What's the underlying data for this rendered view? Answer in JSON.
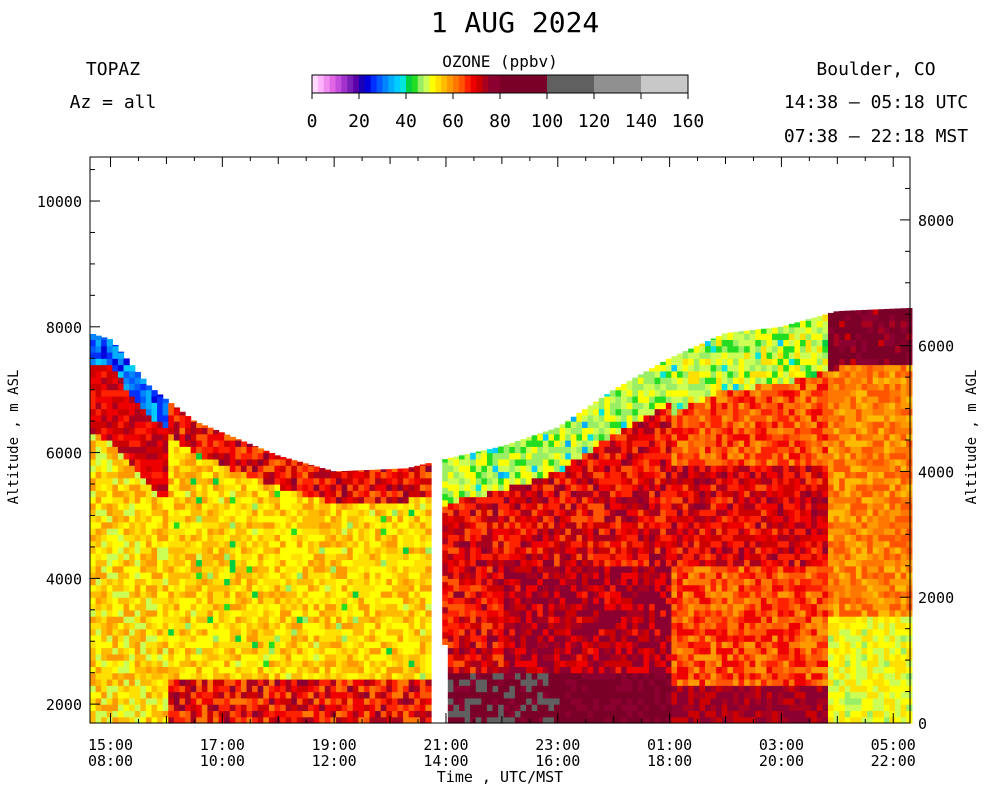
{
  "header": {
    "title": "1 AUG 2024",
    "instrument": "TOPAZ",
    "azimuth": "Az = all",
    "location": "Boulder, CO",
    "utc_range": "14:38 – 05:18 UTC",
    "mst_range": "07:38 – 22:18 MST"
  },
  "colorbar": {
    "title": "OZONE (ppbv)",
    "tick_labels": [
      "0",
      "20",
      "40",
      "60",
      "80",
      "100",
      "120",
      "140",
      "160"
    ],
    "bins": [
      {
        "from": 0,
        "to": 2.5,
        "color": "#ffd9ff"
      },
      {
        "from": 2.5,
        "to": 5,
        "color": "#ffb3ff"
      },
      {
        "from": 5,
        "to": 7.5,
        "color": "#f08cf0"
      },
      {
        "from": 7.5,
        "to": 10,
        "color": "#e066e6"
      },
      {
        "from": 10,
        "to": 12.5,
        "color": "#c34ddc"
      },
      {
        "from": 12.5,
        "to": 15,
        "color": "#a333cc"
      },
      {
        "from": 15,
        "to": 17.5,
        "color": "#7a1fb8"
      },
      {
        "from": 17.5,
        "to": 20,
        "color": "#5a00a8"
      },
      {
        "from": 20,
        "to": 22.5,
        "color": "#1a00b8"
      },
      {
        "from": 22.5,
        "to": 25,
        "color": "#0000dd"
      },
      {
        "from": 25,
        "to": 27.5,
        "color": "#0030ff"
      },
      {
        "from": 27.5,
        "to": 30,
        "color": "#005aff"
      },
      {
        "from": 30,
        "to": 32.5,
        "color": "#0085ff"
      },
      {
        "from": 32.5,
        "to": 35,
        "color": "#00adff"
      },
      {
        "from": 35,
        "to": 37.5,
        "color": "#00ccff"
      },
      {
        "from": 37.5,
        "to": 40,
        "color": "#00e6dd"
      },
      {
        "from": 40,
        "to": 42.5,
        "color": "#00d040"
      },
      {
        "from": 42.5,
        "to": 45,
        "color": "#22dd22"
      },
      {
        "from": 45,
        "to": 47.5,
        "color": "#99ee66"
      },
      {
        "from": 47.5,
        "to": 50,
        "color": "#ccff55"
      },
      {
        "from": 50,
        "to": 52.5,
        "color": "#ffff00"
      },
      {
        "from": 52.5,
        "to": 55,
        "color": "#ffe000"
      },
      {
        "from": 55,
        "to": 57.5,
        "color": "#ffbb00"
      },
      {
        "from": 57.5,
        "to": 60,
        "color": "#ff9900"
      },
      {
        "from": 60,
        "to": 62.5,
        "color": "#ff7700"
      },
      {
        "from": 62.5,
        "to": 65,
        "color": "#ff5500"
      },
      {
        "from": 65,
        "to": 67.5,
        "color": "#ff2200"
      },
      {
        "from": 67.5,
        "to": 70,
        "color": "#ee0000"
      },
      {
        "from": 70,
        "to": 72.5,
        "color": "#cc0000"
      },
      {
        "from": 72.5,
        "to": 75,
        "color": "#aa0020"
      },
      {
        "from": 75,
        "to": 80,
        "color": "#8b0030"
      },
      {
        "from": 80,
        "to": 100,
        "color": "#7a0028"
      },
      {
        "from": 100,
        "to": 120,
        "color": "#606060"
      },
      {
        "from": 120,
        "to": 140,
        "color": "#909090"
      },
      {
        "from": 140,
        "to": 160,
        "color": "#c8c8c8"
      }
    ]
  },
  "chart_data": {
    "type": "heatmap",
    "variable": "OZONE (ppbv)",
    "xlabel": "Time , UTC/MST",
    "ylabel_left": "Altitude , m ASL",
    "ylabel_right": "Altitude , m AGL",
    "ylim_asl": [
      1700,
      10700
    ],
    "ylim_agl": [
      0,
      9000
    ],
    "xlim_utc_hours": [
      14.633,
      29.3
    ],
    "x_ticks": [
      {
        "utc": "15:00",
        "mst": "08:00",
        "hour": 15
      },
      {
        "utc": "17:00",
        "mst": "10:00",
        "hour": 17
      },
      {
        "utc": "19:00",
        "mst": "12:00",
        "hour": 19
      },
      {
        "utc": "21:00",
        "mst": "14:00",
        "hour": 21
      },
      {
        "utc": "23:00",
        "mst": "16:00",
        "hour": 23
      },
      {
        "utc": "01:00",
        "mst": "18:00",
        "hour": 25
      },
      {
        "utc": "03:00",
        "mst": "20:00",
        "hour": 27
      },
      {
        "utc": "05:00",
        "mst": "22:00",
        "hour": 29
      }
    ],
    "y_ticks_asl": [
      2000,
      4000,
      6000,
      8000,
      10000
    ],
    "y_ticks_agl": [
      0,
      2000,
      4000,
      6000,
      8000
    ],
    "data_top_m_asl": [
      {
        "hour": 14.63,
        "top": 7900
      },
      {
        "hour": 15.0,
        "top": 7800
      },
      {
        "hour": 15.7,
        "top": 7050
      },
      {
        "hour": 16.5,
        "top": 6500
      },
      {
        "hour": 18.0,
        "top": 5950
      },
      {
        "hour": 19.0,
        "top": 5700
      },
      {
        "hour": 20.3,
        "top": 5750
      },
      {
        "hour": 21.0,
        "top": 5900
      },
      {
        "hour": 22.0,
        "top": 6100
      },
      {
        "hour": 23.0,
        "top": 6400
      },
      {
        "hour": 24.0,
        "top": 7000
      },
      {
        "hour": 25.0,
        "top": 7500
      },
      {
        "hour": 26.0,
        "top": 7900
      },
      {
        "hour": 27.0,
        "top": 8000
      },
      {
        "hour": 28.0,
        "top": 8250
      },
      {
        "hour": 29.3,
        "top": 8300
      }
    ],
    "data_gap_utc_hours": [
      20.75,
      20.95
    ],
    "ozone_ppbv_by_period": [
      {
        "hours": "14:38-16:00",
        "upper_layer": 25,
        "mid": 65,
        "lower": 50
      },
      {
        "hours": "16:00-20:45",
        "upper_layer": 62,
        "mid": 53,
        "lower": 58
      },
      {
        "hours": "21:00-25:00",
        "upper_layer": 47,
        "mid": 68,
        "lower": 76
      },
      {
        "hours": "25:00-29:18",
        "upper_layer": 46,
        "mid": 64,
        "lower": 55
      }
    ]
  }
}
